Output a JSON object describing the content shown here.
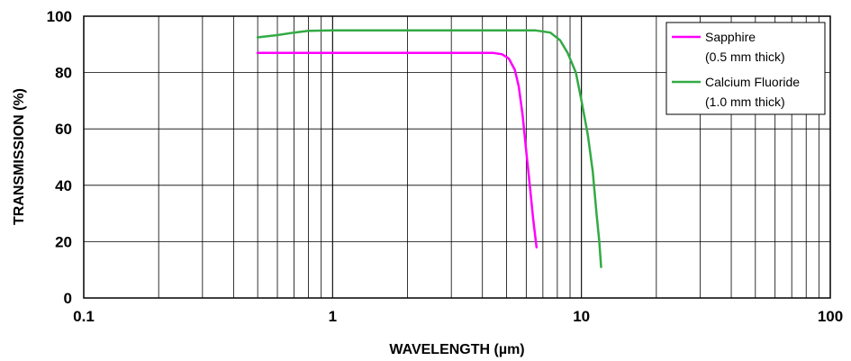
{
  "chart_data": {
    "type": "line",
    "title": "",
    "xlabel": "WAVELENGTH (µm)",
    "ylabel": "TRANSMISSION (%)",
    "xscale": "log",
    "xlim": [
      0.1,
      100
    ],
    "ylim": [
      0,
      100
    ],
    "x_ticks": [
      {
        "value": 0.1,
        "label": "0.1"
      },
      {
        "value": 1,
        "label": "1"
      },
      {
        "value": 10,
        "label": "10"
      },
      {
        "value": 100,
        "label": "100"
      }
    ],
    "y_ticks": [
      {
        "value": 0,
        "label": "0"
      },
      {
        "value": 20,
        "label": "20"
      },
      {
        "value": 40,
        "label": "40"
      },
      {
        "value": 60,
        "label": "60"
      },
      {
        "value": 80,
        "label": "80"
      },
      {
        "value": 100,
        "label": "100"
      }
    ],
    "grid": true,
    "legend_position": "top-right",
    "series": [
      {
        "name": "Sapphire",
        "name_line2": "(0.5 mm thick)",
        "color": "#ff00ff",
        "points": [
          [
            0.5,
            87
          ],
          [
            1.0,
            87
          ],
          [
            2.0,
            87
          ],
          [
            3.0,
            87
          ],
          [
            4.4,
            87
          ],
          [
            4.8,
            86.5
          ],
          [
            5.1,
            85
          ],
          [
            5.4,
            81
          ],
          [
            5.6,
            75
          ],
          [
            5.8,
            65
          ],
          [
            6.0,
            52
          ],
          [
            6.2,
            40
          ],
          [
            6.4,
            28
          ],
          [
            6.6,
            18
          ]
        ]
      },
      {
        "name": "Calcium Fluoride",
        "name_line2": "(1.0 mm thick)",
        "color": "#33aa44",
        "points": [
          [
            0.5,
            92.5
          ],
          [
            0.6,
            93.3
          ],
          [
            0.7,
            94.2
          ],
          [
            0.8,
            94.8
          ],
          [
            1.0,
            95
          ],
          [
            2.0,
            95
          ],
          [
            4.0,
            95
          ],
          [
            6.5,
            95
          ],
          [
            7.5,
            94.2
          ],
          [
            8.2,
            91.5
          ],
          [
            8.8,
            87
          ],
          [
            9.5,
            80
          ],
          [
            10.0,
            70
          ],
          [
            10.6,
            58
          ],
          [
            11.1,
            45
          ],
          [
            11.5,
            30
          ],
          [
            11.8,
            20
          ],
          [
            12.0,
            11
          ]
        ]
      }
    ]
  }
}
